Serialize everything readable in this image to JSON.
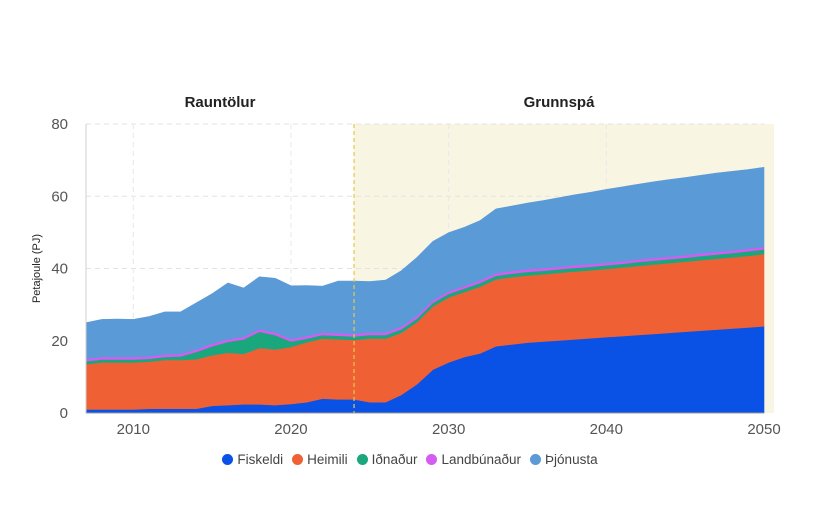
{
  "chart_data": {
    "type": "area",
    "stacked": true,
    "ylabel": "Petajoule (PJ)",
    "xlabel": "",
    "xlim": [
      2007,
      2050
    ],
    "ylim": [
      0,
      80
    ],
    "xticks": [
      2010,
      2020,
      2030,
      2040,
      2050
    ],
    "yticks": [
      0,
      20,
      40,
      60,
      80
    ],
    "grid": true,
    "legend_position": "bottom",
    "periods": [
      {
        "label": "Rauntölur",
        "from": 2007,
        "to": 2024
      },
      {
        "label": "Grunnspá",
        "from": 2024,
        "to": 2050
      }
    ],
    "forecast_shading": {
      "from": 2024,
      "to": 2050,
      "color": "#f9f5e3"
    },
    "divider_x": 2024,
    "x": [
      2007,
      2008,
      2009,
      2010,
      2011,
      2012,
      2013,
      2014,
      2015,
      2016,
      2017,
      2018,
      2019,
      2020,
      2021,
      2022,
      2023,
      2024,
      2025,
      2026,
      2027,
      2028,
      2029,
      2030,
      2031,
      2032,
      2033,
      2034,
      2035,
      2036,
      2037,
      2038,
      2039,
      2040,
      2041,
      2042,
      2043,
      2044,
      2045,
      2046,
      2047,
      2048,
      2049,
      2050
    ],
    "series": [
      {
        "name": "Fiskeldi",
        "color": "#0a52e6",
        "values": [
          1,
          1,
          1,
          1,
          1.2,
          1.2,
          1.2,
          1.2,
          2,
          2.2,
          2.4,
          2.4,
          2.2,
          2.5,
          3,
          4,
          3.8,
          3.8,
          3,
          3,
          5,
          8,
          12,
          14,
          15.5,
          16.5,
          18.5,
          19,
          19.5,
          19.8,
          20.1,
          20.4,
          20.7,
          21,
          21.3,
          21.6,
          21.9,
          22.2,
          22.5,
          22.8,
          23.1,
          23.4,
          23.7,
          24
        ]
      },
      {
        "name": "Heimili",
        "color": "#ef6135",
        "values": [
          12.5,
          13,
          13,
          13,
          13,
          13.5,
          13.5,
          13.7,
          14,
          14.5,
          14,
          15.6,
          15.4,
          15.8,
          16.6,
          16.6,
          16.6,
          16.4,
          17.6,
          17.6,
          17.2,
          17.2,
          17.5,
          18,
          18,
          18.5,
          18.5,
          18.6,
          18.6,
          18.6,
          18.7,
          18.8,
          18.8,
          18.9,
          19,
          19.1,
          19.2,
          19.3,
          19.4,
          19.5,
          19.6,
          19.7,
          19.8,
          20
        ]
      },
      {
        "name": "Iðnaður",
        "color": "#1ba77e",
        "values": [
          0.8,
          0.8,
          0.8,
          0.8,
          0.8,
          0.8,
          1,
          2,
          2.5,
          3,
          4,
          4.5,
          4,
          1.5,
          1,
          1,
          1,
          1,
          1,
          1,
          1,
          1,
          1,
          1,
          1,
          1,
          1,
          1,
          1,
          1,
          1,
          1,
          1,
          1,
          1,
          1.1,
          1.1,
          1.1,
          1.1,
          1.2,
          1.2,
          1.2,
          1.3,
          1.3
        ]
      },
      {
        "name": "Landbúnaður",
        "color": "#d55cf2",
        "values": [
          0.7,
          0.7,
          0.7,
          0.7,
          0.7,
          0.7,
          0.7,
          0.7,
          0.7,
          0.7,
          0.7,
          0.7,
          0.7,
          0.7,
          0.7,
          0.7,
          0.7,
          0.7,
          0.7,
          0.7,
          0.7,
          0.7,
          0.7,
          0.7,
          0.7,
          0.7,
          0.7,
          0.7,
          0.7,
          0.7,
          0.7,
          0.7,
          0.7,
          0.7,
          0.7,
          0.7,
          0.7,
          0.7,
          0.7,
          0.7,
          0.7,
          0.7,
          0.7,
          0.7
        ]
      },
      {
        "name": "Þjónusta",
        "color": "#5a9ad6",
        "values": [
          10,
          10.4,
          10.5,
          10.4,
          11,
          11.8,
          11.6,
          12.9,
          13.8,
          15.6,
          13.5,
          14.5,
          15,
          14.7,
          14,
          12.8,
          14.4,
          14.6,
          14.1,
          14.5,
          15.5,
          16.2,
          16.3,
          16.2,
          16.2,
          16.6,
          17.8,
          18,
          18.3,
          18.7,
          19.1,
          19.5,
          19.9,
          20.3,
          20.6,
          20.8,
          21.1,
          21.3,
          21.5,
          21.6,
          21.8,
          21.9,
          21.9,
          22
        ]
      }
    ]
  }
}
